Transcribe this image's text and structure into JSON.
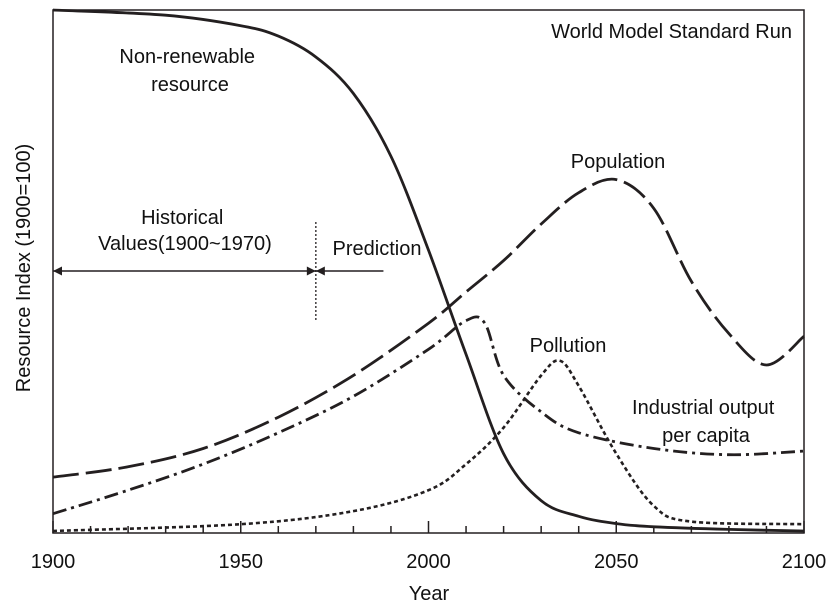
{
  "chart_data": {
    "type": "line",
    "title": "World Model Standard Run",
    "xlabel": "Year",
    "ylabel": "Resource Index (1900=100)",
    "xlim": [
      1900,
      2100
    ],
    "ylim": [
      0,
      100
    ],
    "x_ticks": [
      1900,
      1950,
      2000,
      2050,
      2100
    ],
    "x_minor_step": 10,
    "y_ticks": [],
    "grid": false,
    "legend": "none",
    "color": "#231f20",
    "series": [
      {
        "key": "nonrenewable",
        "name": "Non-renewable resource",
        "label_lines": [
          "Non-renewable",
          "resource"
        ],
        "dash": "solid",
        "points": [
          [
            1900,
            100
          ],
          [
            1930,
            99
          ],
          [
            1950,
            97
          ],
          [
            1960,
            95
          ],
          [
            1970,
            91
          ],
          [
            1980,
            84
          ],
          [
            1990,
            72
          ],
          [
            2000,
            54
          ],
          [
            2010,
            34
          ],
          [
            2020,
            15
          ],
          [
            2030,
            6
          ],
          [
            2040,
            3
          ],
          [
            2050,
            1.6
          ],
          [
            2060,
            1
          ],
          [
            2080,
            0.5
          ],
          [
            2100,
            0.2
          ]
        ]
      },
      {
        "key": "population",
        "name": "Population",
        "label_lines": [
          "Population"
        ],
        "dash": "long-dash",
        "points": [
          [
            1900,
            10.5
          ],
          [
            1920,
            12.5
          ],
          [
            1940,
            16
          ],
          [
            1960,
            22
          ],
          [
            1980,
            30
          ],
          [
            2000,
            40
          ],
          [
            2010,
            46
          ],
          [
            2020,
            52
          ],
          [
            2030,
            59
          ],
          [
            2040,
            65
          ],
          [
            2050,
            67.5
          ],
          [
            2060,
            62
          ],
          [
            2070,
            48
          ],
          [
            2080,
            38
          ],
          [
            2090,
            32
          ],
          [
            2100,
            37.5
          ]
        ]
      },
      {
        "key": "industrial",
        "name": "Industrial output per capita",
        "label_lines": [
          "Industrial output",
          "per capita"
        ],
        "dash": "dash-dot",
        "points": [
          [
            1900,
            3.5
          ],
          [
            1920,
            8
          ],
          [
            1940,
            13
          ],
          [
            1960,
            19
          ],
          [
            1980,
            26
          ],
          [
            2000,
            35
          ],
          [
            2010,
            40.5
          ],
          [
            2015,
            40
          ],
          [
            2020,
            30
          ],
          [
            2030,
            23
          ],
          [
            2040,
            19
          ],
          [
            2060,
            16
          ],
          [
            2080,
            14.8
          ],
          [
            2100,
            15.5
          ]
        ]
      },
      {
        "key": "pollution",
        "name": "Pollution",
        "label_lines": [
          "Pollution"
        ],
        "dash": "dotted",
        "points": [
          [
            1900,
            0.2
          ],
          [
            1950,
            1.5
          ],
          [
            1980,
            4
          ],
          [
            2000,
            8
          ],
          [
            2010,
            13
          ],
          [
            2020,
            20
          ],
          [
            2030,
            30
          ],
          [
            2035,
            32.8
          ],
          [
            2040,
            28
          ],
          [
            2050,
            15
          ],
          [
            2060,
            5
          ],
          [
            2070,
            2
          ],
          [
            2100,
            1.5
          ]
        ]
      }
    ],
    "annotations": {
      "historical_lines": [
        "Historical",
        "Values(1900~1970)"
      ],
      "prediction": "Prediction",
      "divider_year": 1970,
      "historical_range": [
        1900,
        1970
      ],
      "prediction_range": [
        1970,
        1988
      ]
    }
  }
}
